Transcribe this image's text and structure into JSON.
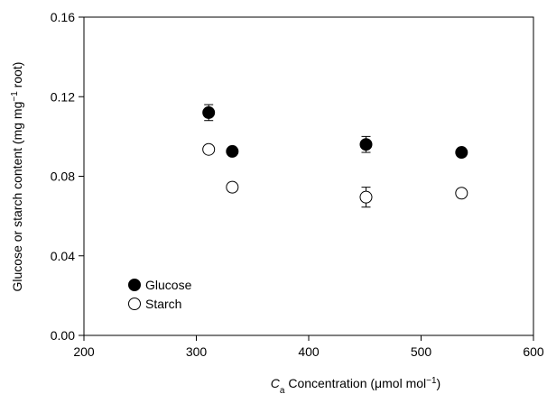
{
  "chart_data": {
    "type": "scatter",
    "xlabel_italic": "C",
    "xlabel_sub": "a",
    "xlabel_rest": " Concentration (μmol mol",
    "xlabel_sup": "−1",
    "xlabel_end": ")",
    "ylabel_main": "Glucose or starch content (mg mg",
    "ylabel_sup": "−1",
    "ylabel_end": " root)",
    "xlim": [
      200,
      600
    ],
    "ylim": [
      0,
      0.16
    ],
    "xticks": [
      200,
      300,
      400,
      500,
      600
    ],
    "yticks": [
      0.0,
      0.04,
      0.08,
      0.12,
      0.16
    ],
    "ytick_labels": [
      "0.00",
      "0.04",
      "0.08",
      "0.12",
      "0.16"
    ],
    "legend_position": "bottom-left",
    "grid": false,
    "series": [
      {
        "name": "Glucose",
        "marker": "filled-circle",
        "color": "#000000",
        "x": [
          311,
          332,
          451,
          536
        ],
        "y": [
          0.112,
          0.0925,
          0.096,
          0.092
        ],
        "err": [
          0.004,
          0.001,
          0.004,
          0.001
        ]
      },
      {
        "name": "Starch",
        "marker": "open-circle",
        "color": "#000000",
        "x": [
          311,
          332,
          451,
          536
        ],
        "y": [
          0.0935,
          0.0745,
          0.0695,
          0.0715
        ],
        "err": [
          0.001,
          0.001,
          0.005,
          0.001
        ]
      }
    ]
  }
}
